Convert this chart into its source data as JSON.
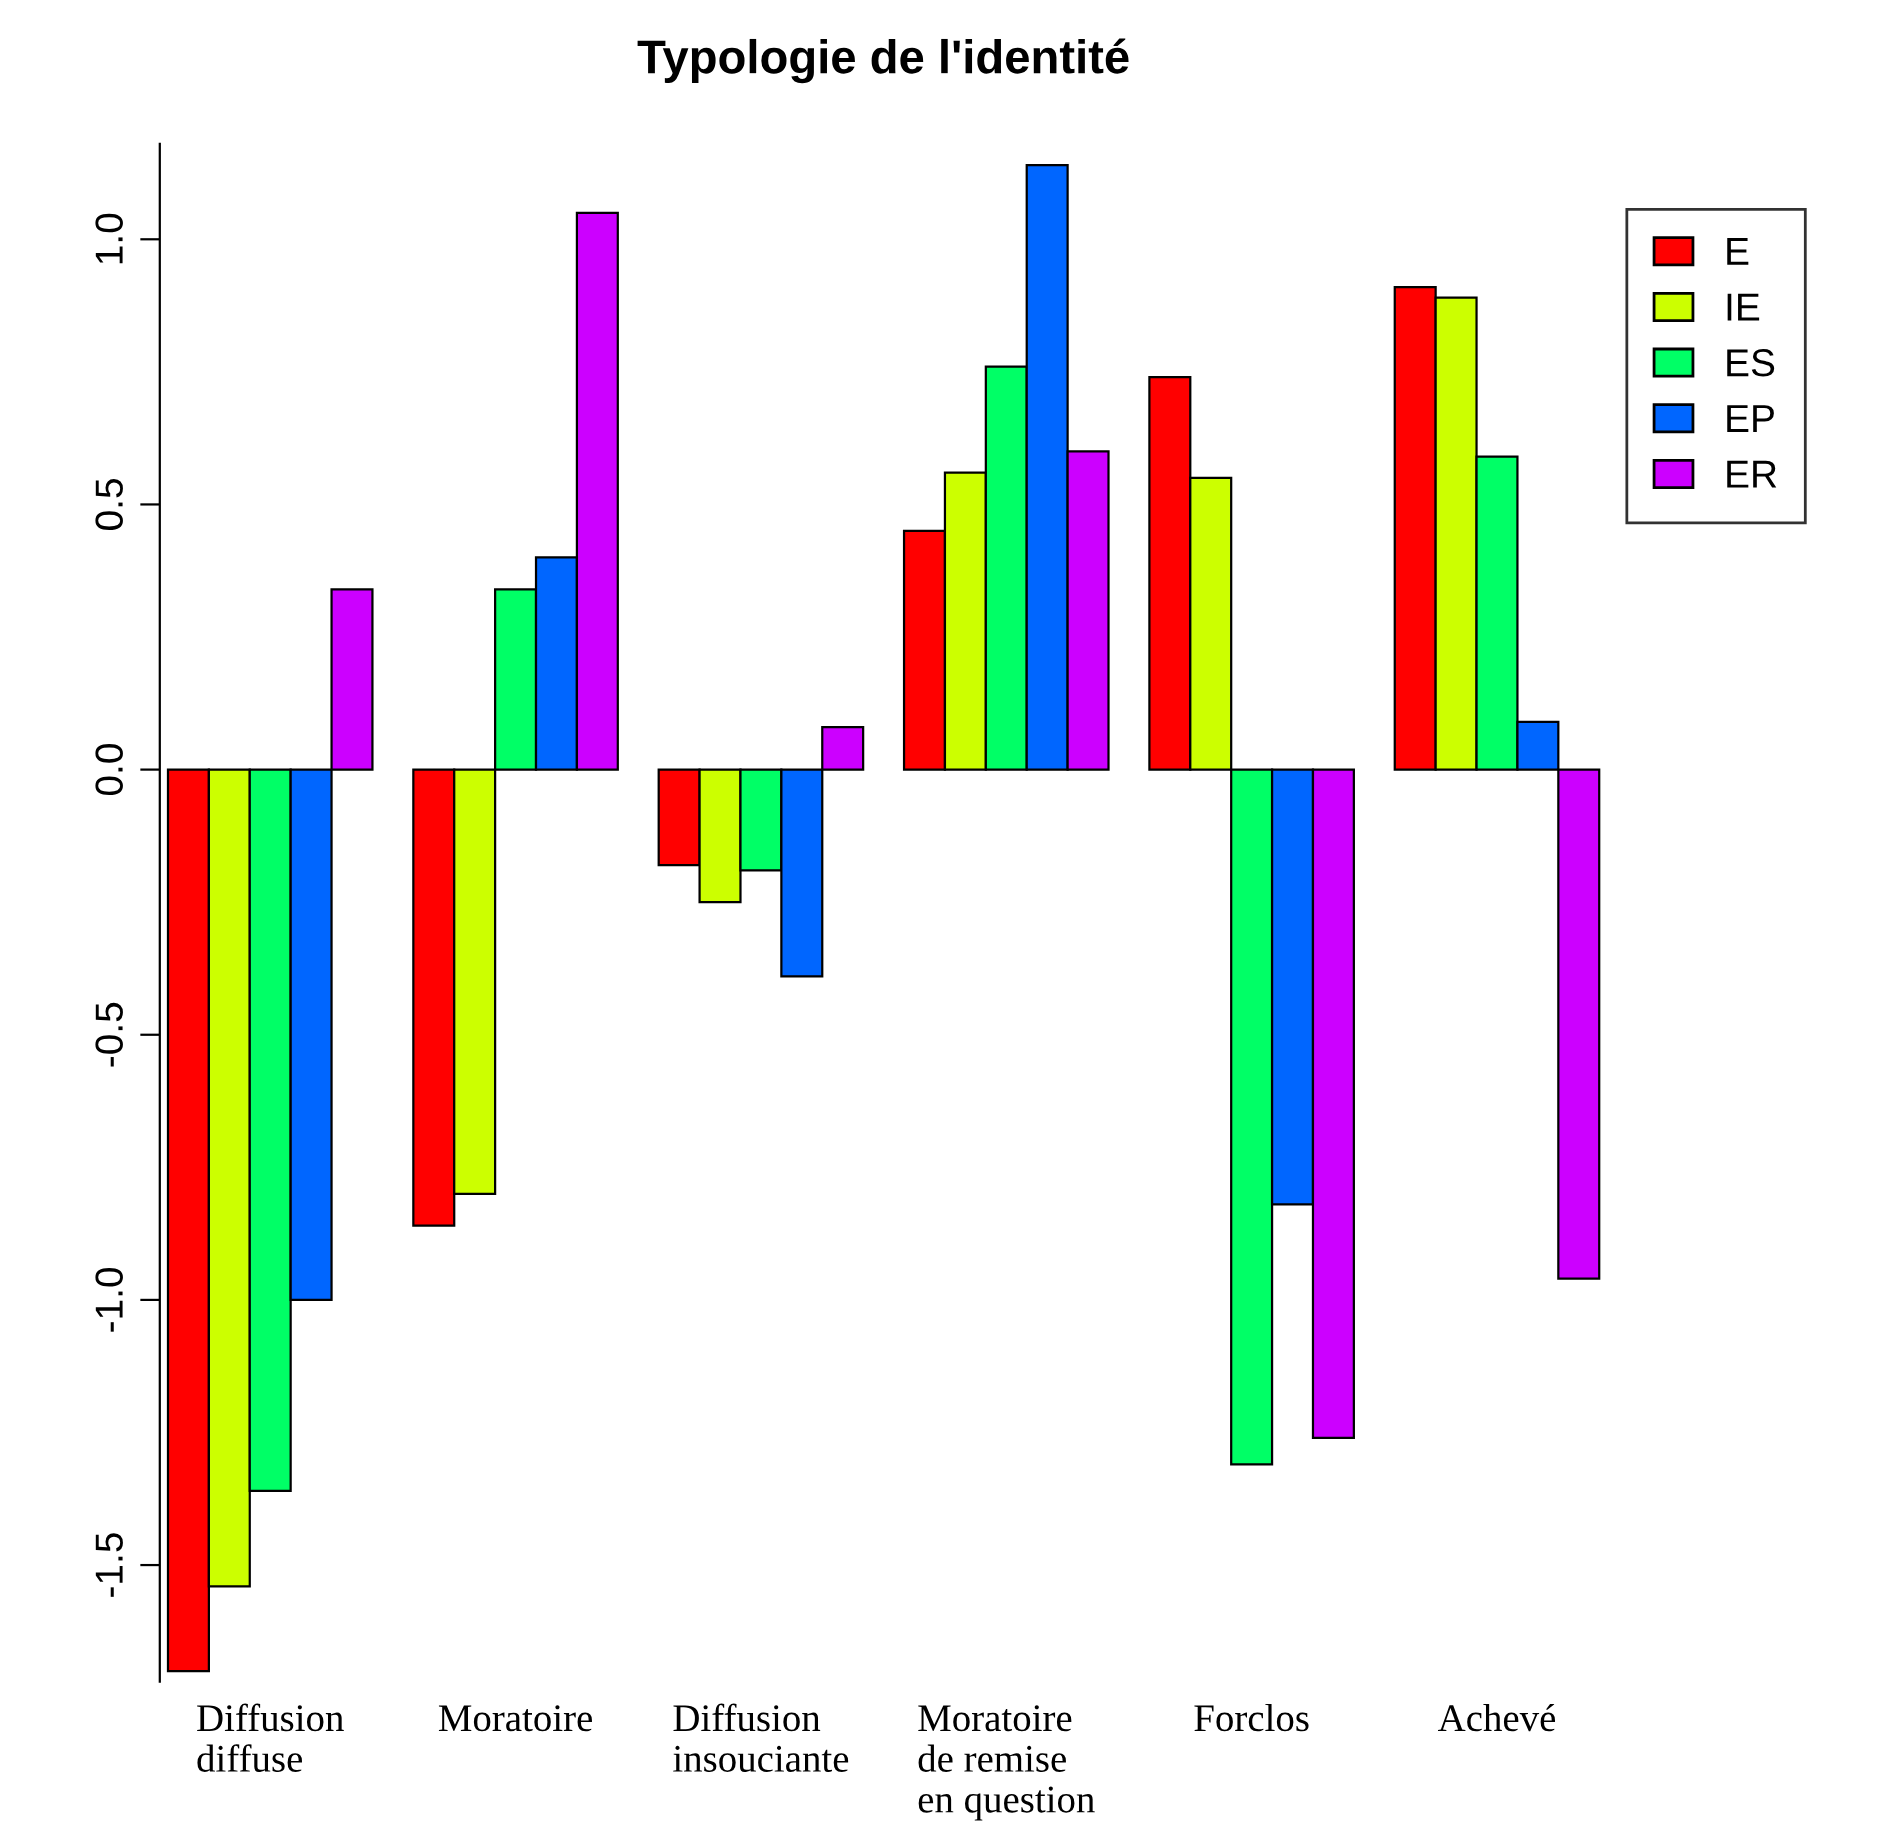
{
  "chart_data": {
    "type": "bar",
    "title": "Typologie de l'identité",
    "categories": [
      "Diffusion\ndiffuse",
      "Moratoire",
      "Diffusion\ninsouciante",
      "Moratoire\nde remise\nen question",
      "Forclos",
      "Achevé"
    ],
    "series": [
      {
        "name": "E",
        "color": "#ff0000",
        "values": [
          -1.7,
          -0.86,
          -0.18,
          0.45,
          0.74,
          0.91
        ]
      },
      {
        "name": "IE",
        "color": "#ccff00",
        "values": [
          -1.54,
          -0.8,
          -0.25,
          0.56,
          0.55,
          0.89
        ]
      },
      {
        "name": "ES",
        "color": "#00ff66",
        "values": [
          -1.36,
          0.34,
          -0.19,
          0.76,
          -1.31,
          0.59
        ]
      },
      {
        "name": "EP",
        "color": "#0066ff",
        "values": [
          -1.0,
          0.4,
          -0.39,
          1.14,
          -0.82,
          0.09
        ]
      },
      {
        "name": "ER",
        "color": "#cc00ff",
        "values": [
          0.34,
          1.05,
          0.08,
          0.6,
          -1.26,
          -0.96
        ]
      }
    ],
    "ylim": [
      -1.72,
      1.18
    ],
    "yticks": [
      {
        "value": -1.5,
        "label": "-1.5"
      },
      {
        "value": -1.0,
        "label": "-1.0"
      },
      {
        "value": -0.5,
        "label": "-0.5"
      },
      {
        "value": 0.0,
        "label": "0.0"
      },
      {
        "value": 0.5,
        "label": "0.5"
      },
      {
        "value": 1.0,
        "label": "1.0"
      }
    ],
    "grid": false,
    "legend": "top right"
  }
}
